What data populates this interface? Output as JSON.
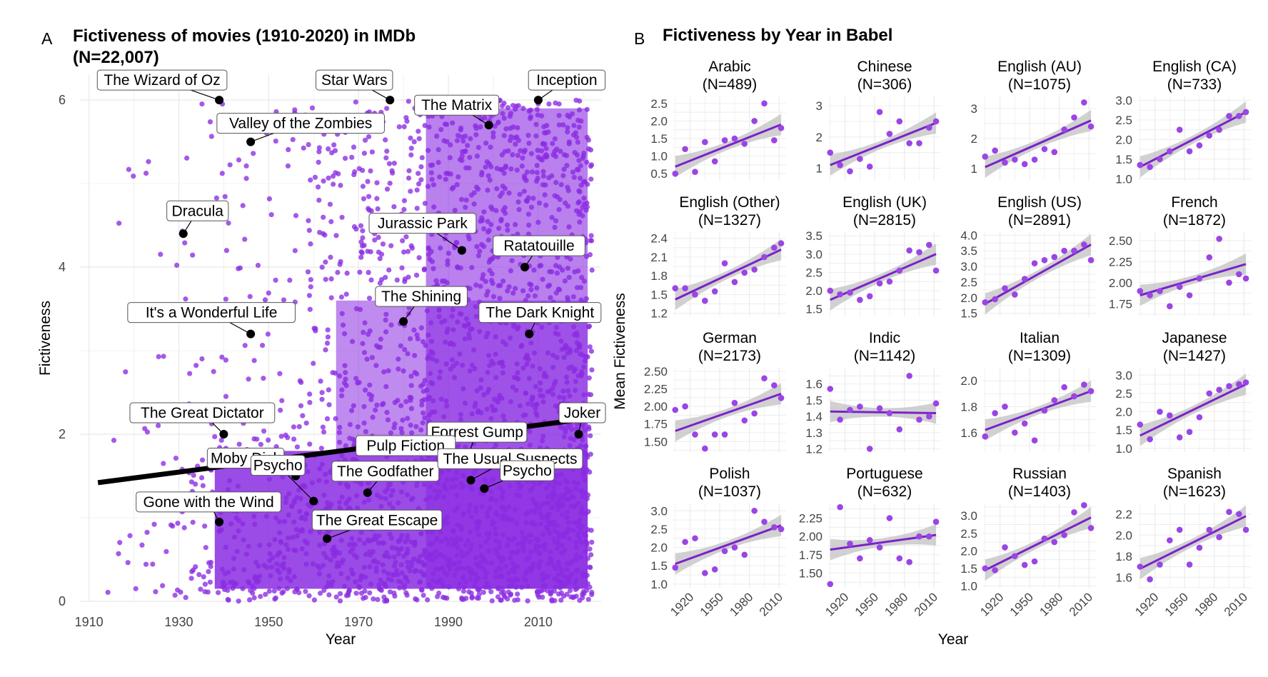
{
  "chart_data": [
    {
      "panel": "A",
      "type": "scatter",
      "title": "Fictiveness of movies (1910-2020) in IMDb",
      "subtitle": "(N=22,007)",
      "xlabel": "Year",
      "ylabel": "Fictiveness",
      "xlim": [
        1908,
        2024
      ],
      "ylim": [
        0,
        6.3
      ],
      "xticks": [
        1910,
        1930,
        1950,
        1970,
        1990,
        2010
      ],
      "yticks": [
        0,
        2,
        4,
        6
      ],
      "grid": true,
      "point_color": "#8a2be2",
      "trend": {
        "x": [
          1912,
          2020
        ],
        "y": [
          1.42,
          2.18
        ],
        "color": "#000000"
      },
      "labeled_points": [
        {
          "name": "The Wizard of Oz",
          "x": 1939,
          "y": 6.0
        },
        {
          "name": "Star Wars",
          "x": 1977,
          "y": 6.0
        },
        {
          "name": "Inception",
          "x": 2010,
          "y": 6.0
        },
        {
          "name": "The Matrix",
          "x": 1999,
          "y": 5.7
        },
        {
          "name": "Valley of the Zombies",
          "x": 1946,
          "y": 5.5
        },
        {
          "name": "Dracula",
          "x": 1931,
          "y": 4.4
        },
        {
          "name": "Jurassic Park",
          "x": 1993,
          "y": 4.2
        },
        {
          "name": "Ratatouille",
          "x": 2007,
          "y": 4.0
        },
        {
          "name": "The Shining",
          "x": 1980,
          "y": 3.35
        },
        {
          "name": "It's a Wonderful Life",
          "x": 1946,
          "y": 3.2
        },
        {
          "name": "The Dark Knight",
          "x": 2008,
          "y": 3.2
        },
        {
          "name": "Forrest Gump",
          "x": 1994,
          "y": 1.7
        },
        {
          "name": "The Great Dictator",
          "x": 1940,
          "y": 2.0
        },
        {
          "name": "Pulp Fiction",
          "x": 1994,
          "y": 1.65
        },
        {
          "name": "Joker",
          "x": 2019,
          "y": 2.0
        },
        {
          "name": "Moby Dick",
          "x": 1956,
          "y": 1.5
        },
        {
          "name": "Psycho",
          "x": 1960,
          "y": 1.2
        },
        {
          "name": "The Godfather",
          "x": 1972,
          "y": 1.3
        },
        {
          "name": "The Usual Suspects",
          "x": 1995,
          "y": 1.45
        },
        {
          "name": "Psycho",
          "x": 1998,
          "y": 1.35
        },
        {
          "name": "Gone with the Wind",
          "x": 1939,
          "y": 0.95
        },
        {
          "name": "The Great Escape",
          "x": 1963,
          "y": 0.75
        }
      ]
    },
    {
      "panel": "B",
      "type": "scatter",
      "title": "Fictiveness by Year in Babel",
      "xlabel": "Year",
      "ylabel": "Mean Fictiveness",
      "xlim": [
        1903,
        2017
      ],
      "xticks": [
        1920,
        1950,
        1980,
        2010
      ],
      "grid": true,
      "point_color": "#9b45e4",
      "line_color": "#7a22c9",
      "ribbon_color": "#bdbdbd",
      "panels": [
        {
          "name": "Arabic",
          "n": "(N=489)",
          "yticks": [
            0.5,
            1.0,
            1.5,
            2.0,
            2.5
          ],
          "ylim": [
            0.3,
            2.7
          ],
          "x": [
            1905,
            1915,
            1925,
            1935,
            1945,
            1955,
            1965,
            1975,
            1985,
            1995,
            2005,
            2012
          ],
          "y": [
            0.5,
            1.2,
            0.55,
            1.4,
            0.85,
            1.45,
            1.5,
            1.35,
            2.0,
            2.5,
            1.45,
            1.8
          ],
          "fit": [
            0.7,
            1.9
          ]
        },
        {
          "name": "Chinese",
          "n": "(N=306)",
          "yticks": [
            1,
            2,
            3
          ],
          "ylim": [
            0.6,
            3.3
          ],
          "x": [
            1905,
            1915,
            1925,
            1935,
            1945,
            1955,
            1965,
            1975,
            1985,
            1995,
            2005,
            2012
          ],
          "y": [
            1.5,
            1.1,
            0.9,
            1.3,
            1.05,
            2.8,
            2.1,
            2.5,
            1.8,
            1.8,
            2.3,
            2.5
          ],
          "fit": [
            1.1,
            2.45
          ]
        },
        {
          "name": "English (AU)",
          "n": "(N=1075)",
          "yticks": [
            1,
            2,
            3
          ],
          "ylim": [
            0.6,
            3.4
          ],
          "x": [
            1905,
            1915,
            1925,
            1935,
            1945,
            1955,
            1965,
            1975,
            1985,
            1995,
            2005,
            2012
          ],
          "y": [
            1.4,
            1.6,
            1.2,
            1.3,
            1.15,
            1.3,
            1.65,
            1.55,
            2.3,
            2.7,
            3.2,
            2.4
          ],
          "fit": [
            1.05,
            2.6
          ]
        },
        {
          "name": "English (CA)",
          "n": "(N=733)",
          "yticks": [
            1.0,
            1.5,
            2.0,
            2.5,
            3.0
          ],
          "ylim": [
            0.95,
            3.1
          ],
          "x": [
            1905,
            1915,
            1925,
            1935,
            1945,
            1955,
            1965,
            1975,
            1985,
            1995,
            2005,
            2012
          ],
          "y": [
            1.35,
            1.3,
            1.5,
            1.7,
            2.25,
            1.7,
            1.85,
            2.1,
            2.25,
            2.6,
            2.6,
            2.7
          ],
          "fit": [
            1.3,
            2.7
          ]
        },
        {
          "name": "English (Other)",
          "n": "(N=1327)",
          "yticks": [
            1.2,
            1.5,
            1.8,
            2.1,
            2.4
          ],
          "ylim": [
            1.15,
            2.5
          ],
          "x": [
            1905,
            1915,
            1925,
            1935,
            1945,
            1955,
            1965,
            1975,
            1985,
            1995,
            2005,
            2012
          ],
          "y": [
            1.6,
            1.6,
            1.5,
            1.4,
            1.55,
            2.0,
            1.7,
            1.85,
            1.9,
            2.1,
            2.25,
            2.32
          ],
          "fit": [
            1.42,
            2.22
          ]
        },
        {
          "name": "English (UK)",
          "n": "(N=2815)",
          "yticks": [
            1.5,
            2.0,
            2.5,
            3.0,
            3.5
          ],
          "ylim": [
            1.3,
            3.6
          ],
          "x": [
            1905,
            1915,
            1925,
            1935,
            1945,
            1955,
            1965,
            1975,
            1985,
            1995,
            2005,
            2012
          ],
          "y": [
            2.0,
            1.9,
            1.95,
            1.75,
            1.85,
            2.2,
            2.25,
            2.55,
            3.1,
            3.05,
            3.25,
            2.55
          ],
          "fit": [
            1.75,
            3.0
          ]
        },
        {
          "name": "English (US)",
          "n": "(N=2891)",
          "yticks": [
            1.5,
            2.0,
            2.5,
            3.0,
            3.5,
            4.0
          ],
          "ylim": [
            1.4,
            4.1
          ],
          "x": [
            1905,
            1915,
            1925,
            1935,
            1945,
            1955,
            1965,
            1975,
            1985,
            1995,
            2005,
            2012
          ],
          "y": [
            1.85,
            1.95,
            2.3,
            2.1,
            2.6,
            3.1,
            3.2,
            3.3,
            3.5,
            3.5,
            3.7,
            3.2
          ],
          "fit": [
            1.8,
            3.7
          ]
        },
        {
          "name": "French",
          "n": "(N=1872)",
          "yticks": [
            1.75,
            2.0,
            2.25,
            2.5
          ],
          "ylim": [
            1.6,
            2.6
          ],
          "x": [
            1905,
            1915,
            1925,
            1935,
            1945,
            1955,
            1965,
            1975,
            1985,
            1995,
            2005,
            2012
          ],
          "y": [
            1.9,
            1.85,
            1.9,
            1.72,
            1.95,
            1.85,
            2.05,
            2.3,
            2.52,
            2.0,
            2.1,
            2.05
          ],
          "fit": [
            1.85,
            2.22
          ]
        },
        {
          "name": "German",
          "n": "(N=2173)",
          "yticks": [
            1.5,
            1.75,
            2.0,
            2.25,
            2.5
          ],
          "ylim": [
            1.35,
            2.55
          ],
          "x": [
            1905,
            1915,
            1925,
            1935,
            1945,
            1955,
            1965,
            1975,
            1985,
            1995,
            2005,
            2012
          ],
          "y": [
            1.95,
            2.0,
            1.6,
            1.4,
            1.6,
            1.6,
            2.05,
            1.8,
            1.9,
            2.4,
            2.3,
            2.12
          ],
          "fit": [
            1.65,
            2.18
          ]
        },
        {
          "name": "Indic",
          "n": "(N=1142)",
          "yticks": [
            1.2,
            1.3,
            1.4,
            1.5,
            1.6
          ],
          "ylim": [
            1.18,
            1.7
          ],
          "x": [
            1905,
            1915,
            1925,
            1935,
            1945,
            1955,
            1965,
            1975,
            1985,
            1995,
            2005,
            2012
          ],
          "y": [
            1.57,
            1.38,
            1.44,
            1.46,
            1.2,
            1.45,
            1.42,
            1.32,
            1.65,
            1.38,
            1.4,
            1.48
          ],
          "fit": [
            1.43,
            1.42
          ]
        },
        {
          "name": "Italian",
          "n": "(N=1309)",
          "yticks": [
            1.6,
            1.8,
            2.0
          ],
          "ylim": [
            1.45,
            2.1
          ],
          "x": [
            1905,
            1915,
            1925,
            1935,
            1945,
            1955,
            1965,
            1975,
            1985,
            1995,
            2005,
            2012
          ],
          "y": [
            1.57,
            1.75,
            1.8,
            1.6,
            1.67,
            1.54,
            1.77,
            1.85,
            1.95,
            1.88,
            1.97,
            1.92
          ],
          "fit": [
            1.62,
            1.92
          ]
        },
        {
          "name": "Japanese",
          "n": "(N=1427)",
          "yticks": [
            1.0,
            1.5,
            2.0,
            2.5,
            3.0
          ],
          "ylim": [
            0.9,
            3.2
          ],
          "x": [
            1905,
            1915,
            1925,
            1935,
            1945,
            1955,
            1965,
            1975,
            1985,
            1995,
            2005,
            2012
          ],
          "y": [
            1.65,
            1.25,
            2.0,
            1.9,
            1.3,
            1.45,
            1.85,
            2.5,
            2.6,
            2.7,
            2.75,
            2.8
          ],
          "fit": [
            1.35,
            2.75
          ]
        },
        {
          "name": "Polish",
          "n": "(N=1037)",
          "yticks": [
            1.0,
            1.5,
            2.0,
            2.5,
            3.0
          ],
          "ylim": [
            0.9,
            3.2
          ],
          "x": [
            1905,
            1915,
            1925,
            1935,
            1945,
            1955,
            1965,
            1975,
            1985,
            1995,
            2005,
            2012
          ],
          "y": [
            1.45,
            2.15,
            2.25,
            1.3,
            1.4,
            1.9,
            2.0,
            1.8,
            3.0,
            2.7,
            2.55,
            2.5
          ],
          "fit": [
            1.55,
            2.6
          ]
        },
        {
          "name": "Portuguese",
          "n": "(N=632)",
          "yticks": [
            1.5,
            1.75,
            2.0,
            2.25
          ],
          "ylim": [
            1.3,
            2.45
          ],
          "x": [
            1905,
            1915,
            1925,
            1935,
            1945,
            1955,
            1965,
            1975,
            1985,
            1995,
            2005,
            2012
          ],
          "y": [
            1.35,
            2.4,
            1.9,
            1.7,
            1.95,
            1.85,
            2.25,
            1.7,
            1.65,
            2.0,
            2.0,
            2.2
          ],
          "fit": [
            1.82,
            2.02
          ]
        },
        {
          "name": "Russian",
          "n": "(N=1403)",
          "yticks": [
            1.0,
            1.5,
            2.0,
            2.5,
            3.0
          ],
          "ylim": [
            0.95,
            3.35
          ],
          "x": [
            1905,
            1915,
            1925,
            1935,
            1945,
            1955,
            1965,
            1975,
            1985,
            1995,
            2005,
            2012
          ],
          "y": [
            1.5,
            1.45,
            2.1,
            1.85,
            1.6,
            1.7,
            2.35,
            2.25,
            2.45,
            3.1,
            3.3,
            2.65
          ],
          "fit": [
            1.45,
            2.95
          ]
        },
        {
          "name": "Spanish",
          "n": "(N=1623)",
          "yticks": [
            1.6,
            1.8,
            2.0,
            2.2
          ],
          "ylim": [
            1.5,
            2.3
          ],
          "x": [
            1905,
            1915,
            1925,
            1935,
            1945,
            1955,
            1965,
            1975,
            1985,
            1995,
            2005,
            2012
          ],
          "y": [
            1.7,
            1.58,
            1.72,
            1.95,
            2.05,
            1.72,
            1.88,
            2.05,
            1.98,
            2.22,
            2.2,
            2.05
          ],
          "fit": [
            1.68,
            2.18
          ]
        }
      ]
    }
  ],
  "labels": {
    "panel_a": "A",
    "panel_b": "B"
  }
}
